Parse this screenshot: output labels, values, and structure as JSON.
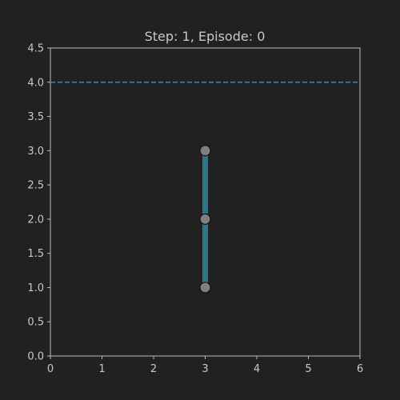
{
  "title": "Step: 1, Episode: 0",
  "colors": {
    "background": "#212121",
    "axes_frame": "#bdbdbd",
    "tick_text": "#c8c8c8",
    "target_line": "#3d7fa6",
    "link": "#2e7589",
    "joint_fill": "#7f7f7f",
    "joint_edge": "#111111"
  },
  "chart_data": {
    "type": "line",
    "title": "Step: 1, Episode: 0",
    "xlim": [
      0,
      6
    ],
    "ylim": [
      0,
      4.5
    ],
    "x_ticks": [
      "0",
      "1",
      "2",
      "3",
      "4",
      "5",
      "6"
    ],
    "y_ticks": [
      "0.0",
      "0.5",
      "1.0",
      "1.5",
      "2.0",
      "2.5",
      "3.0",
      "3.5",
      "4.0",
      "4.5"
    ],
    "grid": false,
    "target_height": 4.0,
    "joints": [
      {
        "x": 3.0,
        "y": 1.0
      },
      {
        "x": 3.0,
        "y": 2.0
      },
      {
        "x": 3.0,
        "y": 3.0
      }
    ]
  }
}
